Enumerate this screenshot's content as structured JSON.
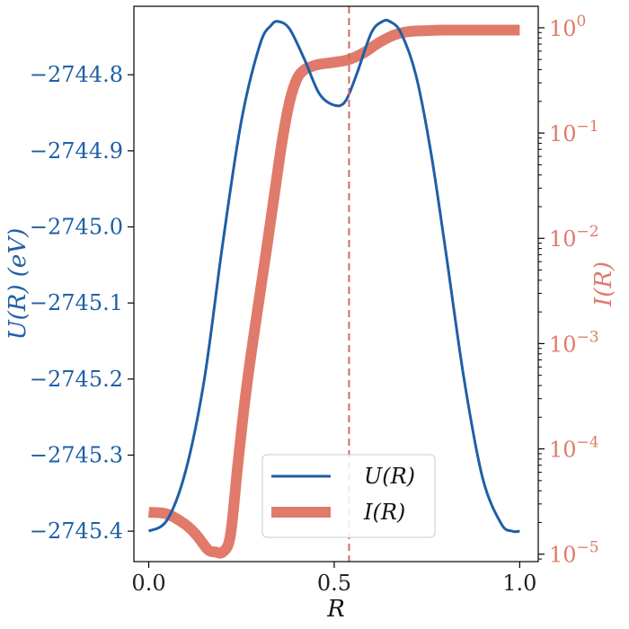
{
  "chart_data": {
    "type": "line",
    "title": "",
    "xlabel": "R",
    "ylabel_left": "U(R) (eV)",
    "ylabel_right": "I(R)",
    "xlim": [
      -0.04,
      1.05
    ],
    "ylim_left": [
      -2745.44,
      -2744.71
    ],
    "ylim_right": [
      8.5e-06,
      1.6
    ],
    "yscale_right": "log",
    "x_ticks": [
      0.0,
      0.5,
      1.0
    ],
    "x_tick_labels": [
      "0.0",
      "0.5",
      "1.0"
    ],
    "y_left_ticks": [
      -2744.8,
      -2744.9,
      -2745.0,
      -2745.1,
      -2745.2,
      -2745.3,
      -2745.4
    ],
    "y_left_tick_labels": [
      "−2744.8",
      "−2744.9",
      "−2745.0",
      "−2745.1",
      "−2745.2",
      "−2745.3",
      "−2745.4"
    ],
    "y_right_ticks": [
      1,
      0.1,
      0.01,
      0.001,
      0.0001,
      1e-05
    ],
    "y_right_tick_bases": [
      "10",
      "10",
      "10",
      "10",
      "10",
      "10"
    ],
    "y_right_tick_exps": [
      "0",
      "−1",
      "−2",
      "−3",
      "−4",
      "−5"
    ],
    "vline_x": 0.54,
    "grid": false,
    "legend_placement": "lower-center",
    "series": [
      {
        "name": "U(R)",
        "axis": "left",
        "color": "#1f5fa6",
        "x": [
          0.0,
          0.05,
          0.1,
          0.15,
          0.2,
          0.25,
          0.3,
          0.33,
          0.35,
          0.38,
          0.42,
          0.46,
          0.5,
          0.53,
          0.56,
          0.6,
          0.63,
          0.65,
          0.68,
          0.72,
          0.76,
          0.8,
          0.85,
          0.9,
          0.95,
          0.98,
          1.0
        ],
        "y": [
          -2745.4,
          -2745.385,
          -2745.32,
          -2745.2,
          -2745.02,
          -2744.86,
          -2744.76,
          -2744.735,
          -2744.73,
          -2744.74,
          -2744.78,
          -2744.825,
          -2744.84,
          -2744.835,
          -2744.8,
          -2744.745,
          -2744.73,
          -2744.73,
          -2744.745,
          -2744.8,
          -2744.9,
          -2745.03,
          -2745.2,
          -2745.33,
          -2745.39,
          -2745.4,
          -2745.4
        ]
      },
      {
        "name": "I(R)",
        "axis": "right",
        "color": "#e07a6a",
        "x": [
          0.0,
          0.05,
          0.1,
          0.13,
          0.16,
          0.18,
          0.2,
          0.22,
          0.24,
          0.26,
          0.28,
          0.3,
          0.32,
          0.34,
          0.36,
          0.38,
          0.4,
          0.42,
          0.44,
          0.46,
          0.5,
          0.54,
          0.58,
          0.62,
          0.66,
          0.7,
          0.75,
          0.8,
          0.9,
          1.0
        ],
        "y": [
          2.5e-05,
          2.4e-05,
          1.9e-05,
          1.5e-05,
          1.1e-05,
          1.05e-05,
          1.05e-05,
          1.5e-05,
          7e-05,
          0.0003,
          0.001,
          0.003,
          0.009,
          0.028,
          0.085,
          0.2,
          0.33,
          0.4,
          0.43,
          0.45,
          0.47,
          0.5,
          0.58,
          0.72,
          0.85,
          0.92,
          0.94,
          0.95,
          0.95,
          0.95
        ]
      }
    ]
  }
}
